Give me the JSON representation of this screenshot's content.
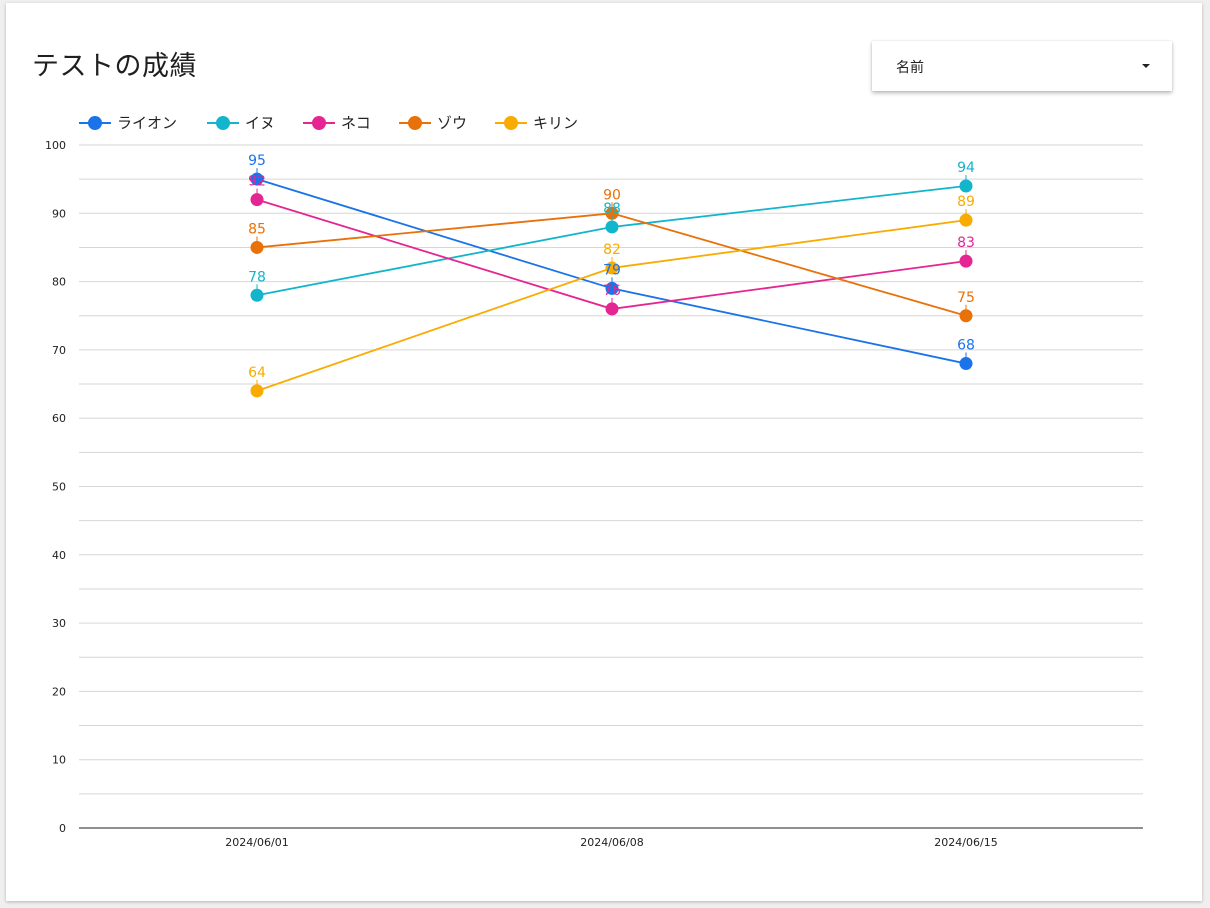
{
  "title": "テストの成績",
  "dropdown": {
    "label": "名前"
  },
  "chart_data": {
    "type": "line",
    "categories": [
      "2024/06/01",
      "2024/06/08",
      "2024/06/15"
    ],
    "ylim": [
      0,
      100
    ],
    "y_ticks": [
      0,
      10,
      20,
      30,
      40,
      50,
      60,
      70,
      80,
      90,
      100
    ],
    "grid": true,
    "legend_position": "top-left",
    "data_labels": true,
    "series": [
      {
        "name": "ライオン",
        "color": "#1a73e8",
        "values": [
          95,
          79,
          68
        ]
      },
      {
        "name": "イヌ",
        "color": "#12b5cb",
        "values": [
          78,
          88,
          94
        ]
      },
      {
        "name": "ネコ",
        "color": "#e52592",
        "values": [
          92,
          76,
          83
        ]
      },
      {
        "name": "ゾウ",
        "color": "#e8710a",
        "values": [
          85,
          90,
          75
        ]
      },
      {
        "name": "キリン",
        "color": "#f9ab00",
        "values": [
          64,
          82,
          89
        ]
      }
    ]
  }
}
